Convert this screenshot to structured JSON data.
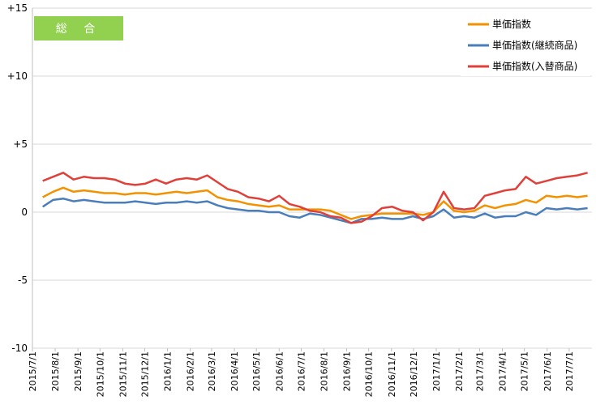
{
  "badge": {
    "label": "総 合",
    "color": "#92D050"
  },
  "chart_data": {
    "type": "line",
    "title": "総 合",
    "ylim": [
      -10,
      15
    ],
    "y_ticks": [
      {
        "value": 15,
        "label": "+15"
      },
      {
        "value": 10,
        "label": "+10"
      },
      {
        "value": 5,
        "label": "+5"
      },
      {
        "value": 0,
        "label": "0"
      },
      {
        "value": -5,
        "label": "-5"
      },
      {
        "value": -10,
        "label": "-10"
      }
    ],
    "x_ticks": [
      "2015/7/1",
      "2015/8/1",
      "2015/9/1",
      "2015/10/1",
      "2015/11/1",
      "2015/12/1",
      "2016/1/1",
      "2016/2/1",
      "2016/3/1",
      "2016/4/1",
      "2016/5/1",
      "2016/6/1",
      "2016/7/1",
      "2016/8/1",
      "2016/9/1",
      "2016/10/1",
      "2016/11/1",
      "2016/12/1",
      "2017/1/1",
      "2017/2/1",
      "2017/3/1",
      "2017/4/1",
      "2017/5/1",
      "2017/6/1",
      "2017/7/1"
    ],
    "grid": "horizontal",
    "legend_position": "top-right",
    "series": [
      {
        "name": "単価指数",
        "color": "#F39200",
        "points": [
          [
            "2015/7/15",
            1.1
          ],
          [
            "2015/7/29",
            1.5
          ],
          [
            "2015/8/12",
            1.8
          ],
          [
            "2015/8/26",
            1.5
          ],
          [
            "2015/9/9",
            1.6
          ],
          [
            "2015/9/23",
            1.5
          ],
          [
            "2015/10/7",
            1.4
          ],
          [
            "2015/10/21",
            1.4
          ],
          [
            "2015/11/4",
            1.3
          ],
          [
            "2015/11/18",
            1.4
          ],
          [
            "2015/12/2",
            1.4
          ],
          [
            "2015/12/16",
            1.3
          ],
          [
            "2015/12/30",
            1.4
          ],
          [
            "2016/1/13",
            1.5
          ],
          [
            "2016/1/27",
            1.4
          ],
          [
            "2016/2/10",
            1.5
          ],
          [
            "2016/2/24",
            1.6
          ],
          [
            "2016/3/9",
            1.1
          ],
          [
            "2016/3/23",
            0.9
          ],
          [
            "2016/4/6",
            0.8
          ],
          [
            "2016/4/20",
            0.6
          ],
          [
            "2016/5/4",
            0.5
          ],
          [
            "2016/5/18",
            0.4
          ],
          [
            "2016/6/1",
            0.5
          ],
          [
            "2016/6/15",
            0.2
          ],
          [
            "2016/6/29",
            0.2
          ],
          [
            "2016/7/13",
            0.2
          ],
          [
            "2016/7/27",
            0.2
          ],
          [
            "2016/8/10",
            0.1
          ],
          [
            "2016/8/24",
            -0.2
          ],
          [
            "2016/9/7",
            -0.5
          ],
          [
            "2016/9/21",
            -0.3
          ],
          [
            "2016/10/5",
            -0.2
          ],
          [
            "2016/10/19",
            -0.1
          ],
          [
            "2016/11/2",
            -0.1
          ],
          [
            "2016/11/16",
            -0.1
          ],
          [
            "2016/11/30",
            -0.1
          ],
          [
            "2016/12/14",
            -0.2
          ],
          [
            "2016/12/28",
            0.0
          ],
          [
            "2017/1/11",
            0.8
          ],
          [
            "2017/1/25",
            0.1
          ],
          [
            "2017/2/8",
            0.0
          ],
          [
            "2017/2/22",
            0.1
          ],
          [
            "2017/3/8",
            0.5
          ],
          [
            "2017/3/22",
            0.3
          ],
          [
            "2017/4/5",
            0.5
          ],
          [
            "2017/4/19",
            0.6
          ],
          [
            "2017/5/3",
            0.9
          ],
          [
            "2017/5/17",
            0.7
          ],
          [
            "2017/5/31",
            1.2
          ],
          [
            "2017/6/14",
            1.1
          ],
          [
            "2017/6/28",
            1.2
          ],
          [
            "2017/7/12",
            1.1
          ],
          [
            "2017/7/26",
            1.2
          ]
        ]
      },
      {
        "name": "単価指数(継続商品)",
        "color": "#4A7EBB",
        "points": [
          [
            "2015/7/15",
            0.4
          ],
          [
            "2015/7/29",
            0.9
          ],
          [
            "2015/8/12",
            1.0
          ],
          [
            "2015/8/26",
            0.8
          ],
          [
            "2015/9/9",
            0.9
          ],
          [
            "2015/9/23",
            0.8
          ],
          [
            "2015/10/7",
            0.7
          ],
          [
            "2015/10/21",
            0.7
          ],
          [
            "2015/11/4",
            0.7
          ],
          [
            "2015/11/18",
            0.8
          ],
          [
            "2015/12/2",
            0.7
          ],
          [
            "2015/12/16",
            0.6
          ],
          [
            "2015/12/30",
            0.7
          ],
          [
            "2016/1/13",
            0.7
          ],
          [
            "2016/1/27",
            0.8
          ],
          [
            "2016/2/10",
            0.7
          ],
          [
            "2016/2/24",
            0.8
          ],
          [
            "2016/3/9",
            0.5
          ],
          [
            "2016/3/23",
            0.3
          ],
          [
            "2016/4/6",
            0.2
          ],
          [
            "2016/4/20",
            0.1
          ],
          [
            "2016/5/4",
            0.1
          ],
          [
            "2016/5/18",
            0.0
          ],
          [
            "2016/6/1",
            0.0
          ],
          [
            "2016/6/15",
            -0.3
          ],
          [
            "2016/6/29",
            -0.4
          ],
          [
            "2016/7/13",
            -0.1
          ],
          [
            "2016/7/27",
            -0.2
          ],
          [
            "2016/8/10",
            -0.4
          ],
          [
            "2016/8/24",
            -0.6
          ],
          [
            "2016/9/7",
            -0.8
          ],
          [
            "2016/9/21",
            -0.5
          ],
          [
            "2016/10/5",
            -0.5
          ],
          [
            "2016/10/19",
            -0.4
          ],
          [
            "2016/11/2",
            -0.5
          ],
          [
            "2016/11/16",
            -0.5
          ],
          [
            "2016/11/30",
            -0.3
          ],
          [
            "2016/12/14",
            -0.5
          ],
          [
            "2016/12/28",
            -0.3
          ],
          [
            "2017/1/11",
            0.2
          ],
          [
            "2017/1/25",
            -0.4
          ],
          [
            "2017/2/8",
            -0.3
          ],
          [
            "2017/2/22",
            -0.4
          ],
          [
            "2017/3/8",
            -0.1
          ],
          [
            "2017/3/22",
            -0.4
          ],
          [
            "2017/4/5",
            -0.3
          ],
          [
            "2017/4/19",
            -0.3
          ],
          [
            "2017/5/3",
            0.0
          ],
          [
            "2017/5/17",
            -0.2
          ],
          [
            "2017/5/31",
            0.3
          ],
          [
            "2017/6/14",
            0.2
          ],
          [
            "2017/6/28",
            0.3
          ],
          [
            "2017/7/12",
            0.2
          ],
          [
            "2017/7/26",
            0.3
          ]
        ]
      },
      {
        "name": "単価指数(入替商品)",
        "color": "#E0403A",
        "points": [
          [
            "2015/7/15",
            2.3
          ],
          [
            "2015/7/29",
            2.6
          ],
          [
            "2015/8/12",
            2.9
          ],
          [
            "2015/8/26",
            2.4
          ],
          [
            "2015/9/9",
            2.6
          ],
          [
            "2015/9/23",
            2.5
          ],
          [
            "2015/10/7",
            2.5
          ],
          [
            "2015/10/21",
            2.4
          ],
          [
            "2015/11/4",
            2.1
          ],
          [
            "2015/11/18",
            2.0
          ],
          [
            "2015/12/2",
            2.1
          ],
          [
            "2015/12/16",
            2.4
          ],
          [
            "2015/12/30",
            2.1
          ],
          [
            "2016/1/13",
            2.4
          ],
          [
            "2016/1/27",
            2.5
          ],
          [
            "2016/2/10",
            2.4
          ],
          [
            "2016/2/24",
            2.7
          ],
          [
            "2016/3/9",
            2.2
          ],
          [
            "2016/3/23",
            1.7
          ],
          [
            "2016/4/6",
            1.5
          ],
          [
            "2016/4/20",
            1.1
          ],
          [
            "2016/5/4",
            1.0
          ],
          [
            "2016/5/18",
            0.8
          ],
          [
            "2016/6/1",
            1.2
          ],
          [
            "2016/6/15",
            0.6
          ],
          [
            "2016/6/29",
            0.4
          ],
          [
            "2016/7/13",
            0.1
          ],
          [
            "2016/7/27",
            0.0
          ],
          [
            "2016/8/10",
            -0.3
          ],
          [
            "2016/8/24",
            -0.4
          ],
          [
            "2016/9/7",
            -0.8
          ],
          [
            "2016/9/21",
            -0.7
          ],
          [
            "2016/10/5",
            -0.3
          ],
          [
            "2016/10/19",
            0.3
          ],
          [
            "2016/11/2",
            0.4
          ],
          [
            "2016/11/16",
            0.1
          ],
          [
            "2016/11/30",
            0.0
          ],
          [
            "2016/12/14",
            -0.6
          ],
          [
            "2016/12/28",
            0.0
          ],
          [
            "2017/1/11",
            1.5
          ],
          [
            "2017/1/25",
            0.3
          ],
          [
            "2017/2/8",
            0.2
          ],
          [
            "2017/2/22",
            0.3
          ],
          [
            "2017/3/8",
            1.2
          ],
          [
            "2017/3/22",
            1.4
          ],
          [
            "2017/4/5",
            1.6
          ],
          [
            "2017/4/19",
            1.7
          ],
          [
            "2017/5/3",
            2.6
          ],
          [
            "2017/5/17",
            2.1
          ],
          [
            "2017/5/31",
            2.3
          ],
          [
            "2017/6/14",
            2.5
          ],
          [
            "2017/6/28",
            2.6
          ],
          [
            "2017/7/12",
            2.7
          ],
          [
            "2017/7/26",
            2.9
          ]
        ]
      }
    ]
  }
}
